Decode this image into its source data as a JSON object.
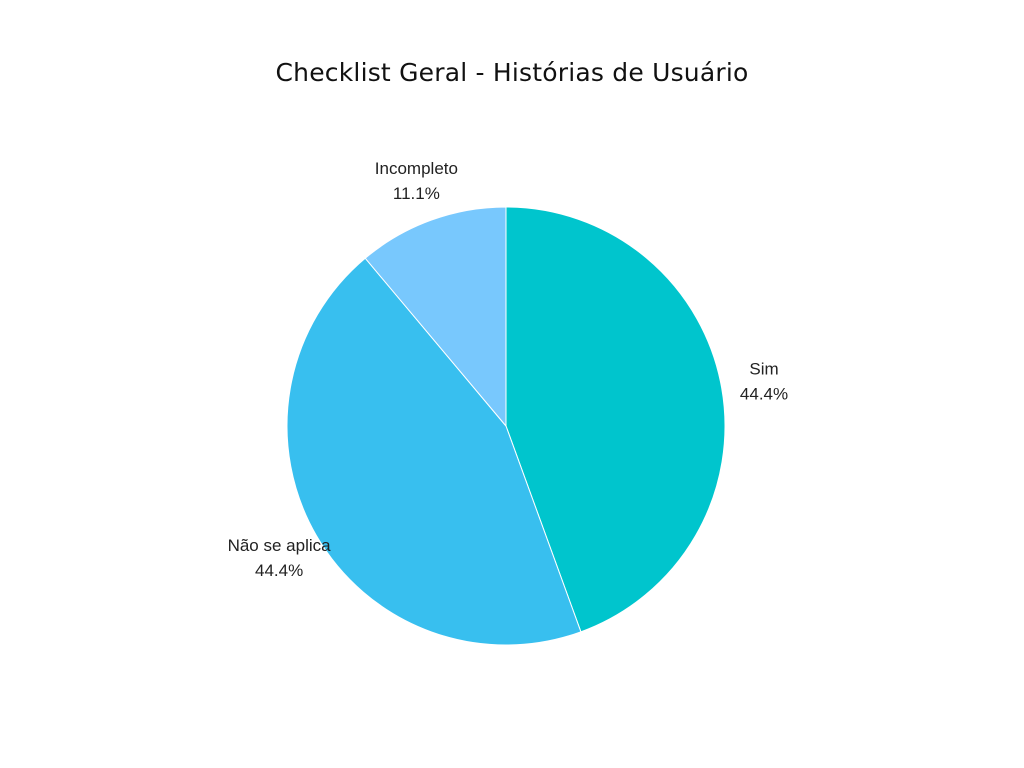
{
  "chart_data": {
    "type": "pie",
    "title": "Checklist Geral - Histórias de Usuário",
    "slices": [
      {
        "label": "Sim",
        "value": 44.4,
        "display": "44.4%",
        "color": "#00C5CD"
      },
      {
        "label": "Não se aplica",
        "value": 44.4,
        "display": "44.4%",
        "color": "#38BFEF"
      },
      {
        "label": "Incompleto",
        "value": 11.1,
        "display": "11.1%",
        "color": "#78C8FD"
      }
    ],
    "start_angle_deg": 0,
    "direction": "clockwise",
    "legend": "none"
  }
}
